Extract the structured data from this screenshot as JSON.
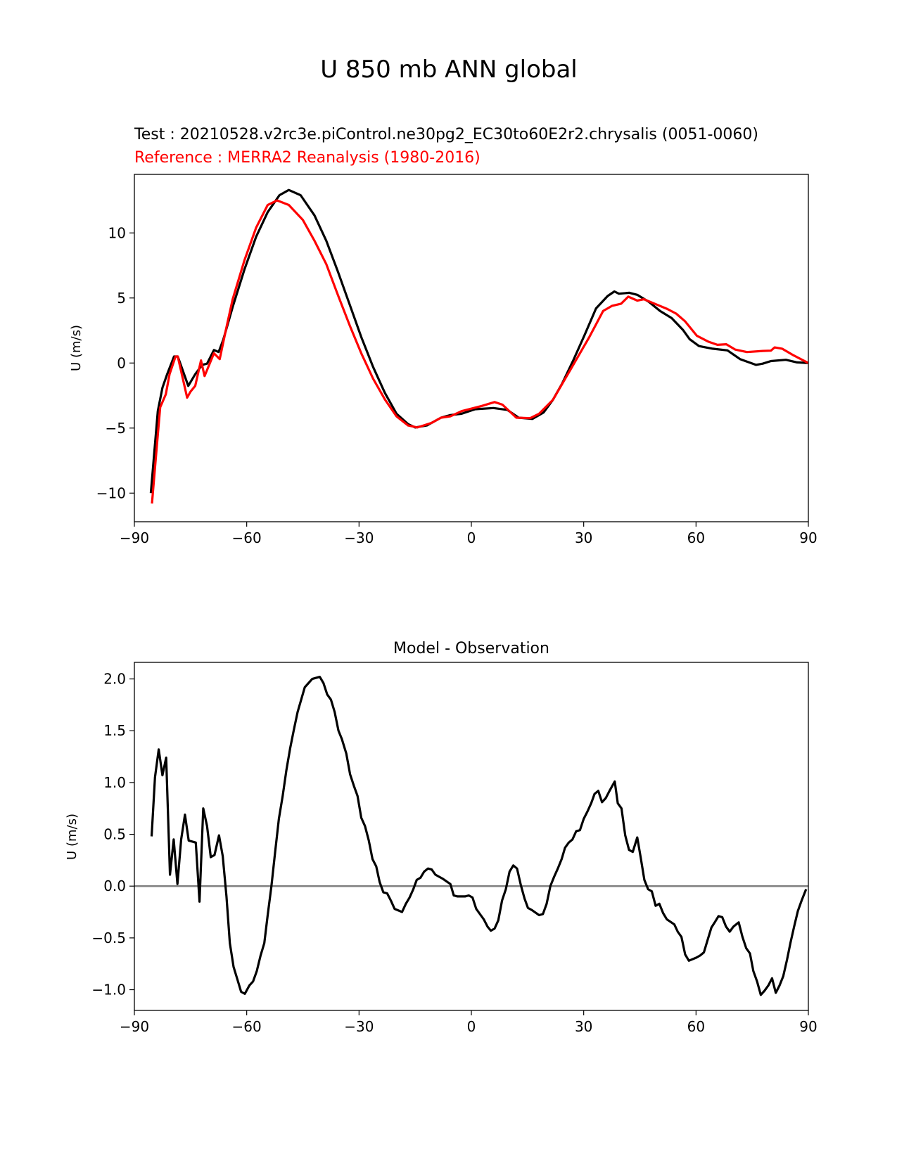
{
  "figure_title": "U 850 mb ANN global",
  "chart_data": [
    {
      "type": "line",
      "title_test": "Test : 20210528.v2rc3e.piControl.ne30pg2_EC30to60E2r2.chrysalis (0051-0060)",
      "title_reference": "Reference : MERRA2 Reanalysis (1980-2016)",
      "xlabel": "",
      "ylabel": "U (m/s)",
      "xlim": [
        -90,
        90
      ],
      "ylim": [
        -12.2,
        14.5
      ],
      "xticks": [
        -90,
        -60,
        -30,
        0,
        30,
        60,
        90
      ],
      "xtick_labels": [
        "−90",
        "−60",
        "−30",
        "0",
        "30",
        "60",
        "90"
      ],
      "yticks": [
        -10,
        -5,
        0,
        5,
        10
      ],
      "ytick_labels": [
        "−10",
        "−5",
        "0",
        "5",
        "10"
      ],
      "grid": false,
      "series": [
        {
          "name": "Test",
          "color": "#000000",
          "x": [
            -85.6,
            -83.75,
            -82.5,
            -81.25,
            -79.4,
            -78.4,
            -75.6,
            -73.75,
            -71.9,
            -70.6,
            -68.75,
            -67.5,
            -66.25,
            -63.75,
            -60.6,
            -57.5,
            -54.4,
            -51.25,
            -48.75,
            -45.6,
            -41.9,
            -38.75,
            -35.6,
            -32.5,
            -29.4,
            -26.25,
            -23.1,
            -20,
            -16.9,
            -15,
            -11.9,
            -8.1,
            -5.6,
            -2.6,
            1.0,
            5.9,
            9.6,
            12.6,
            16.3,
            19.3,
            21.75,
            24.2,
            27.2,
            30.3,
            33.3,
            36.4,
            38.2,
            39.4,
            42.2,
            44.3,
            47.4,
            50.4,
            53.5,
            56.5,
            58.3,
            60.8,
            64.4,
            68.4,
            71.75,
            76,
            77.8,
            80,
            84,
            87,
            90
          ],
          "y": [
            -10.0,
            -3.7,
            -1.9,
            -0.86,
            0.5,
            0.5,
            -1.76,
            -0.86,
            -0.14,
            -0.05,
            1.0,
            0.85,
            1.8,
            4.3,
            7.2,
            9.7,
            11.6,
            12.9,
            13.3,
            12.9,
            11.35,
            9.4,
            7.0,
            4.5,
            2.0,
            -0.3,
            -2.3,
            -3.9,
            -4.7,
            -4.95,
            -4.8,
            -4.2,
            -4.0,
            -3.9,
            -3.55,
            -3.46,
            -3.6,
            -4.2,
            -4.3,
            -3.8,
            -2.84,
            -1.6,
            0.2,
            2.2,
            4.2,
            5.15,
            5.5,
            5.33,
            5.4,
            5.24,
            4.7,
            4.0,
            3.45,
            2.55,
            1.83,
            1.3,
            1.1,
            0.97,
            0.3,
            -0.14,
            -0.05,
            0.15,
            0.25,
            0.05,
            0.0
          ]
        },
        {
          "name": "Reference",
          "color": "#ff0000",
          "x": [
            -85.3,
            -84,
            -83.1,
            -81.6,
            -80.6,
            -79,
            -78.4,
            -75.9,
            -75,
            -73.75,
            -72.2,
            -71.25,
            -68.75,
            -67.2,
            -65.6,
            -63.75,
            -60.6,
            -57.5,
            -54.4,
            -51.9,
            -48.75,
            -45,
            -41.9,
            -38.75,
            -35.6,
            -32.5,
            -29.4,
            -26.25,
            -23.1,
            -20,
            -16.9,
            -14.4,
            -10.6,
            -8.1,
            -5.6,
            -2.6,
            2.8,
            6.2,
            8.3,
            12,
            15.7,
            18.1,
            21.75,
            27.2,
            31.5,
            35.2,
            37.6,
            40.0,
            41.9,
            44.3,
            46.1,
            48.6,
            52.2,
            54.7,
            57.1,
            60.2,
            63.2,
            65.7,
            68.1,
            70.5,
            73.6,
            77.8,
            80,
            81,
            83,
            86,
            90
          ],
          "y": [
            -10.8,
            -6.4,
            -3.4,
            -2.4,
            -0.86,
            0.5,
            0.5,
            -2.66,
            -2.2,
            -1.76,
            0.2,
            -1.0,
            0.75,
            0.3,
            2.5,
            4.9,
            7.9,
            10.4,
            12.15,
            12.5,
            12.15,
            11.0,
            9.4,
            7.6,
            5.2,
            2.9,
            0.75,
            -1.2,
            -2.8,
            -4.1,
            -4.8,
            -4.95,
            -4.6,
            -4.2,
            -4.1,
            -3.7,
            -3.3,
            -3.0,
            -3.2,
            -4.2,
            -4.24,
            -3.9,
            -2.84,
            -0.14,
            2.0,
            4.0,
            4.4,
            4.56,
            5.1,
            4.8,
            4.9,
            4.6,
            4.17,
            3.8,
            3.2,
            2.1,
            1.65,
            1.4,
            1.44,
            1.03,
            0.84,
            0.93,
            0.95,
            1.2,
            1.1,
            0.6,
            0.0
          ]
        }
      ]
    },
    {
      "type": "line",
      "title": "Model - Observation",
      "xlabel": "",
      "ylabel": "U (m/s)",
      "xlim": [
        -90,
        90
      ],
      "ylim": [
        -1.2,
        2.16
      ],
      "xticks": [
        -90,
        -60,
        -30,
        0,
        30,
        60,
        90
      ],
      "xtick_labels": [
        "−90",
        "−60",
        "−30",
        "0",
        "30",
        "60",
        "90"
      ],
      "yticks": [
        -1.0,
        -0.5,
        0.0,
        0.5,
        1.0,
        1.5,
        2.0
      ],
      "ytick_labels": [
        "−1.0",
        "−0.5",
        "0.0",
        "0.5",
        "1.0",
        "1.5",
        "2.0"
      ],
      "grid": false,
      "zero_line_color": "#808080",
      "series": [
        {
          "name": "Model - Observation",
          "color": "#000000",
          "x": [
            -85.4,
            -84.5,
            -83.5,
            -82.5,
            -81.5,
            -80.5,
            -79.5,
            -78.5,
            -77.5,
            -76.5,
            -75.5,
            -73.6,
            -72.6,
            -71.6,
            -70.6,
            -69.6,
            -68.6,
            -67.4,
            -66.4,
            -65.4,
            -64.5,
            -63.5,
            -62.5,
            -61.5,
            -60.5,
            -59.3,
            -58.3,
            -57.3,
            -56.3,
            -55.3,
            -54.4,
            -53.4,
            -52.4,
            -51.4,
            -50.4,
            -49.4,
            -48.4,
            -47.4,
            -46.4,
            -44.5,
            -43.5,
            -42.5,
            -40.5,
            -39.5,
            -38.5,
            -37.5,
            -36.5,
            -35.5,
            -34.6,
            -33.4,
            -32.4,
            -31.4,
            -30.4,
            -29.4,
            -28.4,
            -27.4,
            -26.4,
            -25.4,
            -24.5,
            -23.5,
            -22.5,
            -21.5,
            -20.5,
            -18.5,
            -17.5,
            -16.5,
            -15.5,
            -14.6,
            -13.6,
            -12.6,
            -11.6,
            -10.6,
            -9.6,
            -7.6,
            -5.6,
            -4.7,
            -3.7,
            -1.7,
            -0.7,
            0.3,
            1.3,
            2.3,
            3.3,
            4.3,
            5.2,
            6.2,
            7.2,
            8.2,
            9.2,
            10.2,
            11.2,
            12.2,
            13.2,
            14.2,
            15.1,
            16.1,
            18.1,
            19.1,
            20.1,
            21.1,
            22.1,
            23.1,
            24.1,
            25.0,
            26,
            27,
            28,
            29,
            30,
            31,
            32,
            32.9,
            33.9,
            34.9,
            35.9,
            36.9,
            38.3,
            39.1,
            40.1,
            41.1,
            42.1,
            43.1,
            44.3,
            45.2,
            46.2,
            47.2,
            48.2,
            49.2,
            50.2,
            51.2,
            52.2,
            54.2,
            55.1,
            56.1,
            57.1,
            58.1,
            60.1,
            61.1,
            62.1,
            63.1,
            64.1,
            65,
            66,
            67,
            68,
            69,
            70,
            71.4,
            72.4,
            73.4,
            74.4,
            75.3,
            76.3,
            77.3,
            78.3,
            79.3,
            80.3,
            81.3,
            82.3,
            83.3,
            84.3,
            85.2,
            86.2,
            87.2,
            88.2,
            89.4
          ],
          "y": [
            0.48,
            1.05,
            1.32,
            1.07,
            1.24,
            0.11,
            0.45,
            0.02,
            0.45,
            0.69,
            0.44,
            0.42,
            -0.15,
            0.75,
            0.58,
            0.28,
            0.3,
            0.49,
            0.29,
            -0.1,
            -0.55,
            -0.78,
            -0.9,
            -1.02,
            -1.04,
            -0.96,
            -0.92,
            -0.82,
            -0.67,
            -0.55,
            -0.28,
            0.0,
            0.33,
            0.65,
            0.87,
            1.12,
            1.33,
            1.51,
            1.68,
            1.92,
            1.96,
            2.0,
            2.02,
            1.96,
            1.85,
            1.8,
            1.68,
            1.5,
            1.42,
            1.28,
            1.08,
            0.97,
            0.87,
            0.66,
            0.58,
            0.44,
            0.26,
            0.19,
            0.04,
            -0.06,
            -0.07,
            -0.14,
            -0.22,
            -0.25,
            -0.17,
            -0.11,
            -0.03,
            0.06,
            0.08,
            0.14,
            0.17,
            0.16,
            0.11,
            0.07,
            0.02,
            -0.09,
            -0.1,
            -0.1,
            -0.09,
            -0.11,
            -0.22,
            -0.27,
            -0.32,
            -0.39,
            -0.43,
            -0.41,
            -0.33,
            -0.14,
            -0.03,
            0.14,
            0.2,
            0.17,
            0.01,
            -0.12,
            -0.21,
            -0.23,
            -0.28,
            -0.27,
            -0.17,
            0.0,
            0.09,
            0.17,
            0.26,
            0.37,
            0.42,
            0.45,
            0.53,
            0.54,
            0.65,
            0.72,
            0.8,
            0.89,
            0.92,
            0.81,
            0.85,
            0.92,
            1.01,
            0.8,
            0.75,
            0.49,
            0.35,
            0.33,
            0.47,
            0.28,
            0.06,
            -0.03,
            -0.05,
            -0.19,
            -0.17,
            -0.26,
            -0.32,
            -0.37,
            -0.44,
            -0.49,
            -0.66,
            -0.72,
            -0.69,
            -0.67,
            -0.64,
            -0.52,
            -0.4,
            -0.35,
            -0.29,
            -0.3,
            -0.39,
            -0.44,
            -0.39,
            -0.35,
            -0.49,
            -0.6,
            -0.65,
            -0.82,
            -0.92,
            -1.05,
            -1.01,
            -0.96,
            -0.89,
            -1.03,
            -0.96,
            -0.87,
            -0.71,
            -0.55,
            -0.39,
            -0.24,
            -0.14,
            -0.03
          ]
        }
      ]
    }
  ]
}
